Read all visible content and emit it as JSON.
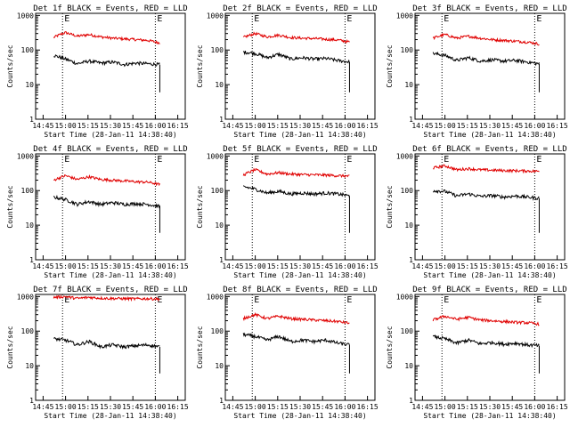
{
  "chart_data": {
    "type": "line",
    "x_tick_labels": [
      "14:45",
      "15:00",
      "15:15",
      "15:30",
      "15:45",
      "16:00",
      "16:15"
    ],
    "y_tick_labels": [
      "1",
      "10",
      "100",
      "1000"
    ],
    "y_scale": "log",
    "ylim": [
      1,
      1000
    ],
    "xlabel": "Start Time (28-Jan-11 14:38:40)",
    "ylabel": "Counts/sec",
    "marker_letters": [
      "E",
      "E"
    ],
    "event_lines_hhmm": [
      "14:58",
      "16:00"
    ],
    "series_colors": {
      "events": "#000000",
      "lld": "#e00000"
    },
    "panels": [
      {
        "title": "Det 1f BLACK = Events, RED = LLD",
        "events": [
          70,
          55,
          40,
          48,
          42,
          45,
          38,
          42,
          40,
          38
        ],
        "lld": [
          230,
          320,
          250,
          280,
          240,
          220,
          210,
          200,
          190,
          160
        ]
      },
      {
        "title": "Det 2f BLACK = Events, RED = LLD",
        "events": [
          88,
          80,
          60,
          75,
          55,
          60,
          55,
          57,
          50,
          45
        ],
        "lld": [
          230,
          300,
          240,
          270,
          230,
          220,
          215,
          205,
          195,
          170
        ]
      },
      {
        "title": "Det 3f BLACK = Events, RED = LLD",
        "events": [
          80,
          70,
          50,
          60,
          48,
          52,
          48,
          50,
          45,
          40
        ],
        "lld": [
          220,
          280,
          220,
          250,
          220,
          200,
          190,
          180,
          170,
          150
        ]
      },
      {
        "title": "Det 4f BLACK = Events, RED = LLD",
        "events": [
          65,
          55,
          40,
          48,
          40,
          45,
          40,
          42,
          40,
          35
        ],
        "lld": [
          200,
          270,
          210,
          250,
          210,
          200,
          190,
          180,
          175,
          150
        ]
      },
      {
        "title": "Det 5f BLACK = Events, RED = LLD",
        "events": [
          130,
          110,
          85,
          95,
          80,
          85,
          80,
          85,
          80,
          70
        ],
        "lld": [
          280,
          400,
          300,
          330,
          300,
          290,
          285,
          280,
          270,
          260
        ]
      },
      {
        "title": "Det 6f BLACK = Events, RED = LLD",
        "events": [
          100,
          95,
          70,
          80,
          68,
          72,
          65,
          70,
          65,
          60
        ],
        "lld": [
          450,
          520,
          400,
          430,
          400,
          390,
          380,
          375,
          370,
          360
        ]
      },
      {
        "title": "Det 7f BLACK = Events, RED = LLD",
        "events": [
          60,
          55,
          40,
          50,
          35,
          40,
          35,
          38,
          40,
          35
        ],
        "lld": [
          950,
          1000,
          880,
          950,
          900,
          880,
          870,
          860,
          870,
          850
        ]
      },
      {
        "title": "Det 8f BLACK = Events, RED = LLD",
        "events": [
          80,
          70,
          55,
          70,
          50,
          55,
          50,
          55,
          45,
          40
        ],
        "lld": [
          230,
          300,
          230,
          270,
          230,
          220,
          210,
          200,
          190,
          170
        ]
      },
      {
        "title": "Det 9f BLACK = Events, RED = LLD",
        "events": [
          70,
          60,
          45,
          55,
          43,
          47,
          42,
          45,
          40,
          38
        ],
        "lld": [
          210,
          270,
          220,
          250,
          210,
          200,
          190,
          180,
          175,
          160
        ]
      }
    ]
  }
}
